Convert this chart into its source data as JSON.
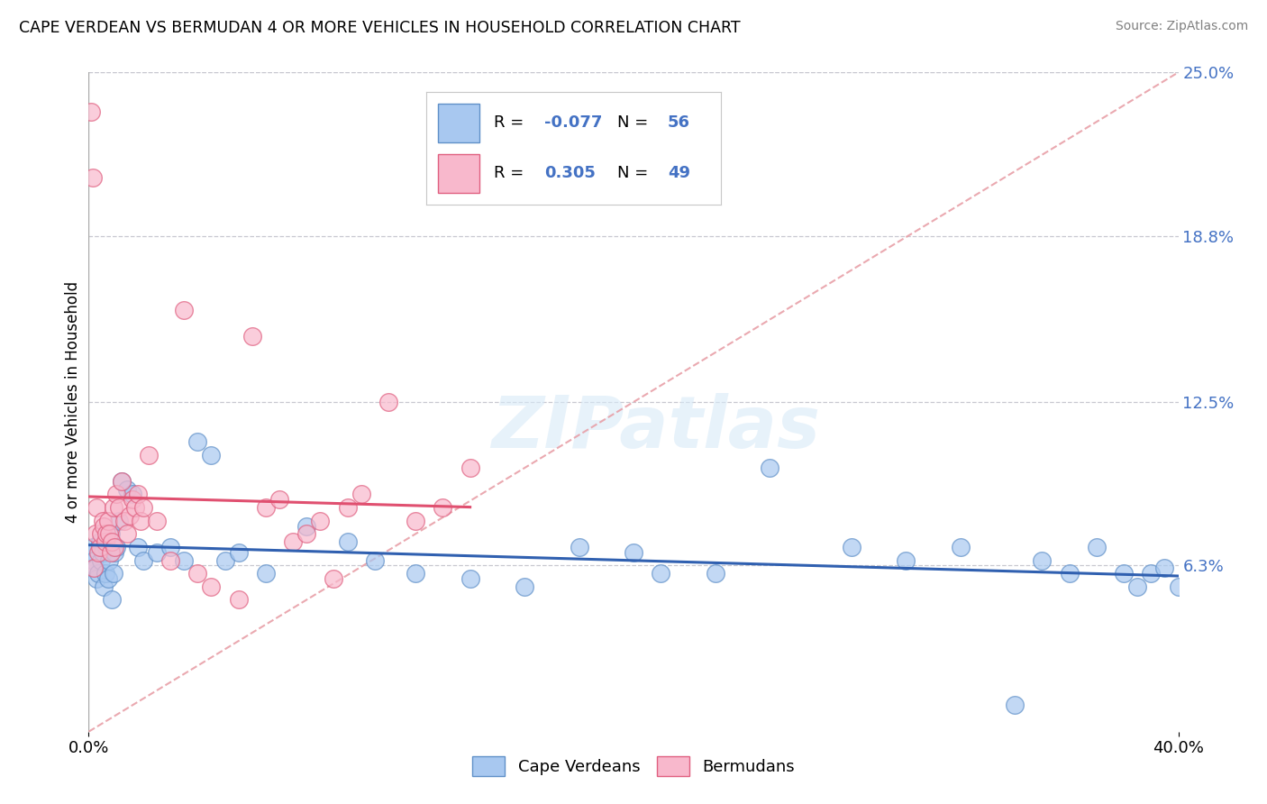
{
  "title": "CAPE VERDEAN VS BERMUDAN 4 OR MORE VEHICLES IN HOUSEHOLD CORRELATION CHART",
  "source": "Source: ZipAtlas.com",
  "ylabel": "4 or more Vehicles in Household",
  "xlim": [
    0.0,
    40.0
  ],
  "ylim": [
    0.0,
    25.0
  ],
  "x_tick_labels": [
    "0.0%",
    "40.0%"
  ],
  "y_tick_vals_right": [
    6.3,
    12.5,
    18.8,
    25.0
  ],
  "y_tick_labels_right": [
    "6.3%",
    "12.5%",
    "18.8%",
    "25.0%"
  ],
  "cv_scatter_color": "#a8c8f0",
  "cv_edge_color": "#6090c8",
  "bm_scatter_color": "#f8b8cc",
  "bm_edge_color": "#e06080",
  "cv_line_color": "#3060b0",
  "bm_line_color": "#e05070",
  "ref_line_color": "#e8a0a8",
  "grid_color": "#c8c8d0",
  "cape_verdean_x": [
    0.1,
    0.15,
    0.2,
    0.25,
    0.3,
    0.35,
    0.4,
    0.45,
    0.5,
    0.55,
    0.6,
    0.65,
    0.7,
    0.75,
    0.8,
    0.85,
    0.9,
    0.95,
    1.0,
    1.1,
    1.2,
    1.4,
    1.6,
    1.8,
    2.0,
    2.5,
    3.0,
    3.5,
    4.0,
    4.5,
    5.0,
    5.5,
    6.5,
    8.0,
    9.5,
    10.5,
    12.0,
    14.0,
    16.0,
    18.0,
    20.0,
    21.0,
    23.0,
    25.0,
    28.0,
    30.0,
    32.0,
    34.0,
    35.0,
    36.0,
    37.0,
    38.0,
    38.5,
    39.0,
    39.5,
    40.0
  ],
  "cape_verdean_y": [
    6.8,
    7.0,
    6.5,
    6.2,
    5.8,
    6.0,
    7.2,
    6.5,
    6.8,
    5.5,
    6.0,
    7.0,
    5.8,
    6.5,
    7.5,
    5.0,
    6.0,
    6.8,
    7.0,
    8.0,
    9.5,
    9.2,
    9.0,
    7.0,
    6.5,
    6.8,
    7.0,
    6.5,
    11.0,
    10.5,
    6.5,
    6.8,
    6.0,
    7.8,
    7.2,
    6.5,
    6.0,
    5.8,
    5.5,
    7.0,
    6.8,
    6.0,
    6.0,
    10.0,
    7.0,
    6.5,
    7.0,
    1.0,
    6.5,
    6.0,
    7.0,
    6.0,
    5.5,
    6.0,
    6.2,
    5.5
  ],
  "bermudan_x": [
    0.1,
    0.15,
    0.2,
    0.25,
    0.3,
    0.35,
    0.4,
    0.45,
    0.5,
    0.55,
    0.6,
    0.65,
    0.7,
    0.75,
    0.8,
    0.85,
    0.9,
    0.95,
    1.0,
    1.1,
    1.2,
    1.3,
    1.4,
    1.5,
    1.6,
    1.7,
    1.8,
    1.9,
    2.0,
    2.2,
    2.5,
    3.0,
    3.5,
    4.0,
    4.5,
    5.5,
    6.0,
    6.5,
    7.0,
    7.5,
    8.0,
    8.5,
    9.0,
    9.5,
    10.0,
    11.0,
    12.0,
    13.0,
    14.0
  ],
  "bermudan_y": [
    23.5,
    21.0,
    6.2,
    7.5,
    8.5,
    6.8,
    7.0,
    7.5,
    8.0,
    7.8,
    7.2,
    7.5,
    8.0,
    7.5,
    6.8,
    7.2,
    8.5,
    7.0,
    9.0,
    8.5,
    9.5,
    8.0,
    7.5,
    8.2,
    8.8,
    8.5,
    9.0,
    8.0,
    8.5,
    10.5,
    8.0,
    6.5,
    16.0,
    6.0,
    5.5,
    5.0,
    15.0,
    8.5,
    8.8,
    7.2,
    7.5,
    8.0,
    5.8,
    8.5,
    9.0,
    12.5,
    8.0,
    8.5,
    10.0
  ],
  "legend_box_color": "#f5f5f5",
  "legend_border_color": "#d0d0d0"
}
